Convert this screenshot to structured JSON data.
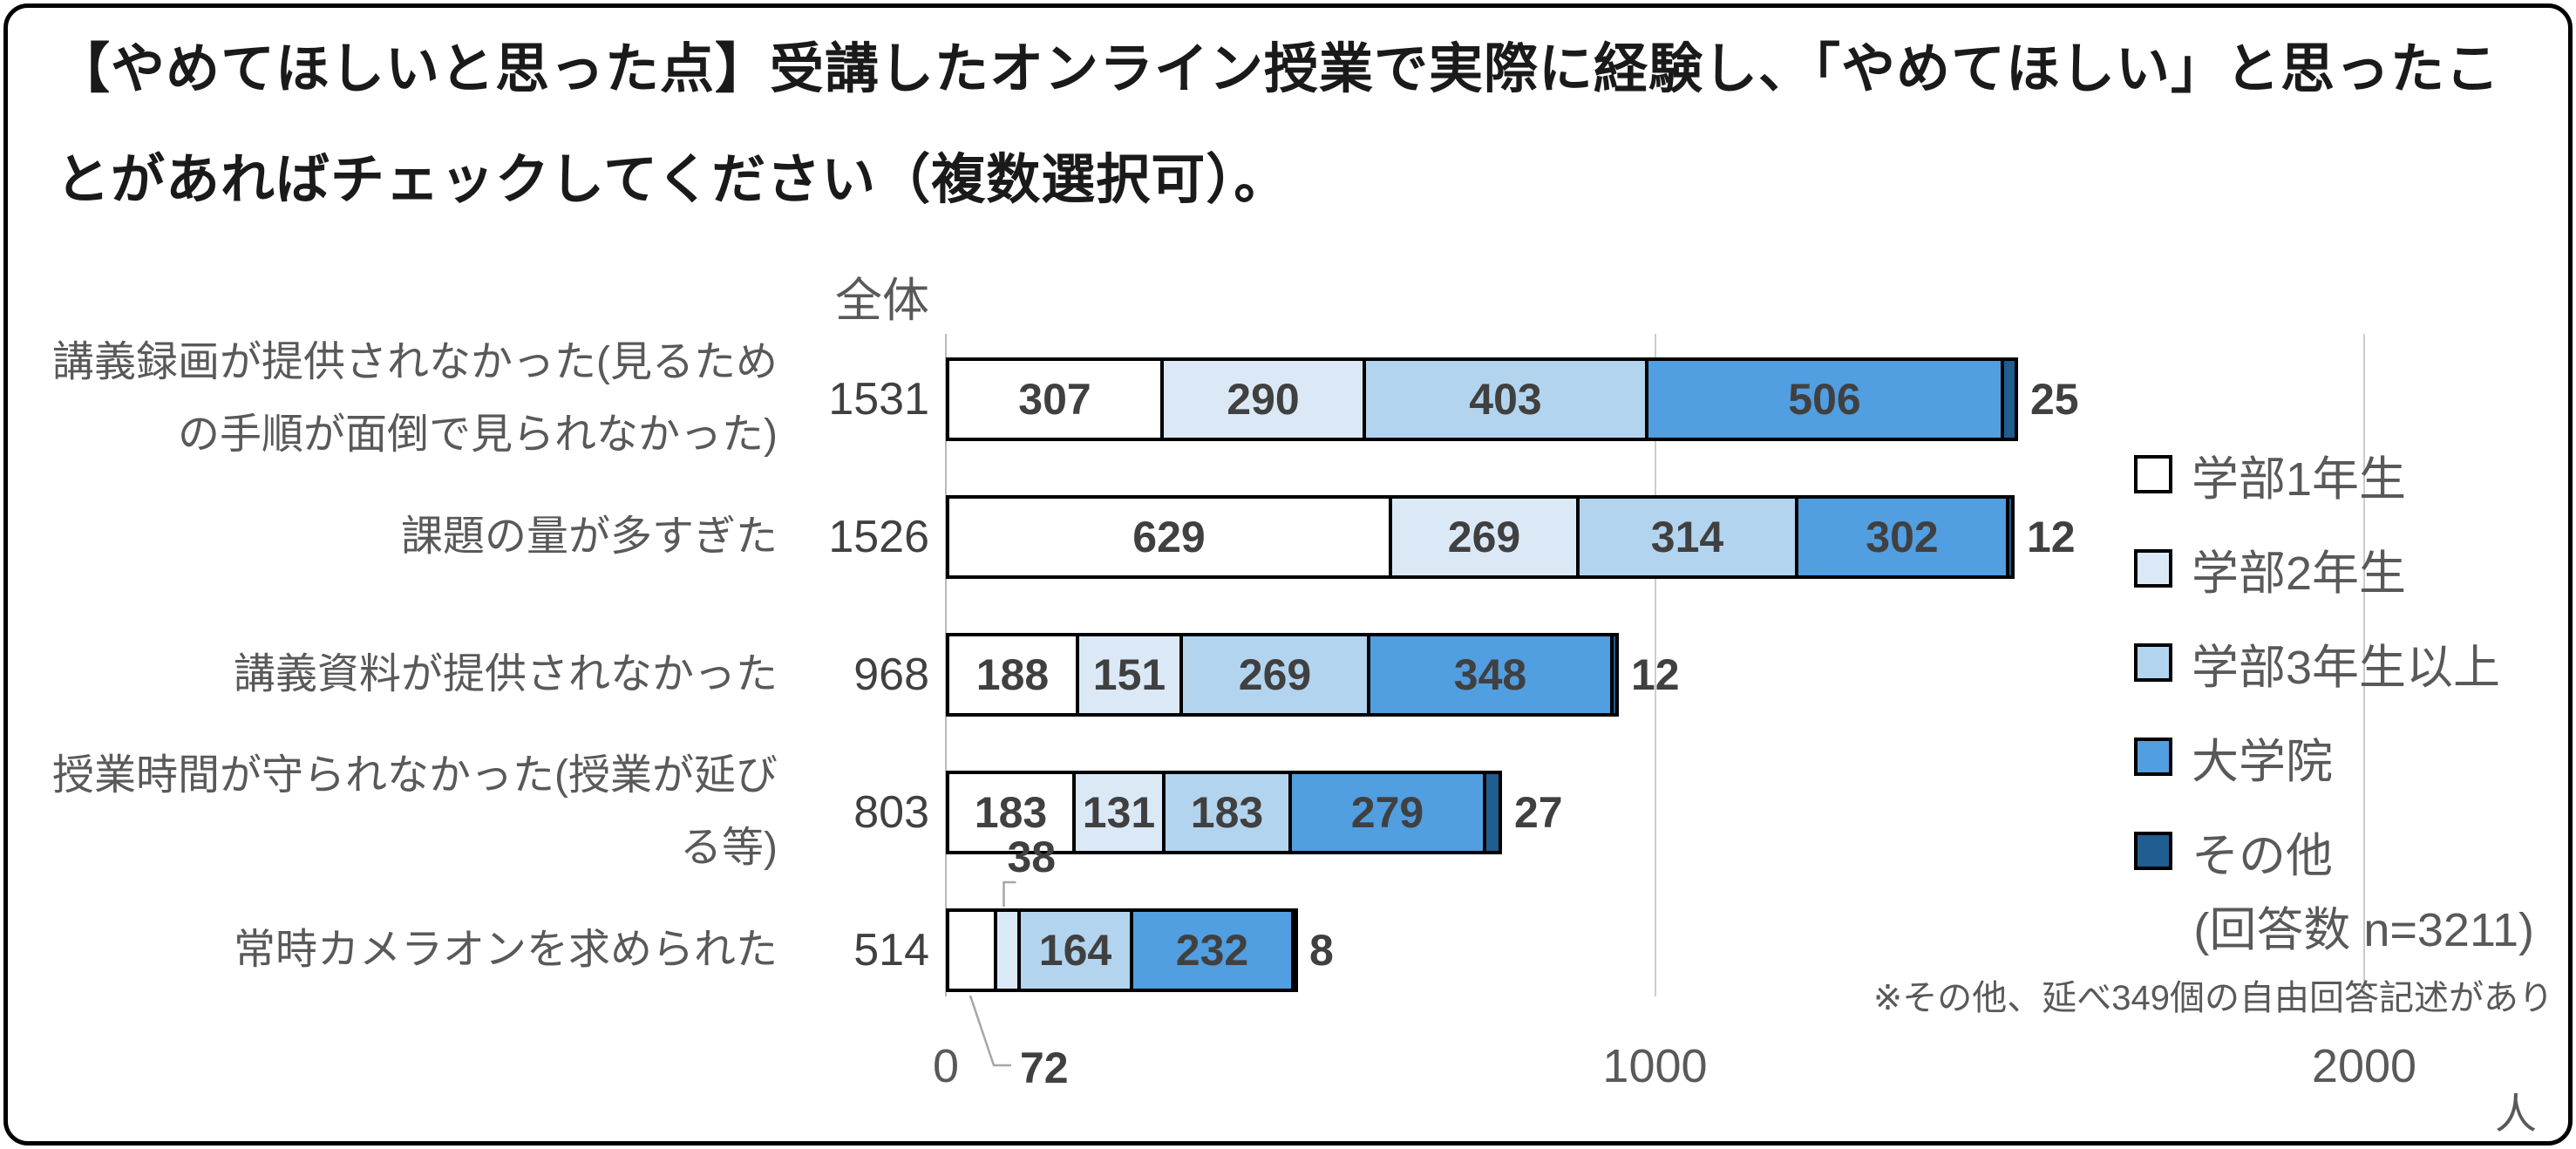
{
  "chart_data": {
    "type": "bar",
    "orientation": "horizontal",
    "stacked": true,
    "title": "【やめてほしいと思った点】受講したオンライン授業で実際に経験し、「やめてほしい」と思ったことがあればチェックしてください（複数選択可）。",
    "column_header": "全体",
    "unit": "人",
    "axis": {
      "min": 0,
      "max": 2000,
      "grid": true,
      "ticks": [
        {
          "value": 0,
          "label": "0"
        },
        {
          "value": 1000,
          "label": "1000"
        },
        {
          "value": 2000,
          "label": "2000"
        }
      ]
    },
    "series": [
      {
        "name": "学部1年生",
        "color": "#ffffff"
      },
      {
        "name": "学部2年生",
        "color": "#dbe9f7"
      },
      {
        "name": "学部3年生以上",
        "color": "#b3d4ef"
      },
      {
        "name": "大学院",
        "color": "#519ee0"
      },
      {
        "name": "その他",
        "color": "#205d90"
      }
    ],
    "rows": [
      {
        "label": "講義録画が提供されなかった(見るための手順が面倒で見られなかった)",
        "total": 1531,
        "values": [
          307,
          290,
          403,
          506,
          25
        ],
        "placements": [
          "inside",
          "inside",
          "inside",
          "inside",
          "outside"
        ]
      },
      {
        "label": "課題の量が多すぎた",
        "total": 1526,
        "values": [
          629,
          269,
          314,
          302,
          12
        ],
        "placements": [
          "inside",
          "inside",
          "inside",
          "inside",
          "outside"
        ]
      },
      {
        "label": "講義資料が提供されなかった",
        "total": 968,
        "values": [
          188,
          151,
          269,
          348,
          12
        ],
        "placements": [
          "inside",
          "inside",
          "inside",
          "inside",
          "outside"
        ]
      },
      {
        "label": "授業時間が守られなかった(授業が延びる等)",
        "total": 803,
        "values": [
          183,
          131,
          183,
          279,
          27
        ],
        "placements": [
          "inside",
          "inside",
          "inside",
          "inside",
          "outside"
        ]
      },
      {
        "label": "常時カメラオンを求められた",
        "total": 514,
        "values": [
          72,
          38,
          164,
          232,
          8
        ],
        "placements": [
          "callout-below",
          "callout-above",
          "inside",
          "inside",
          "outside"
        ]
      }
    ],
    "legend_position": "right",
    "notes": {
      "respondents": "(回答数 n=3211)",
      "other_note": "※その他、延べ349個の自由回答記述があり"
    }
  }
}
